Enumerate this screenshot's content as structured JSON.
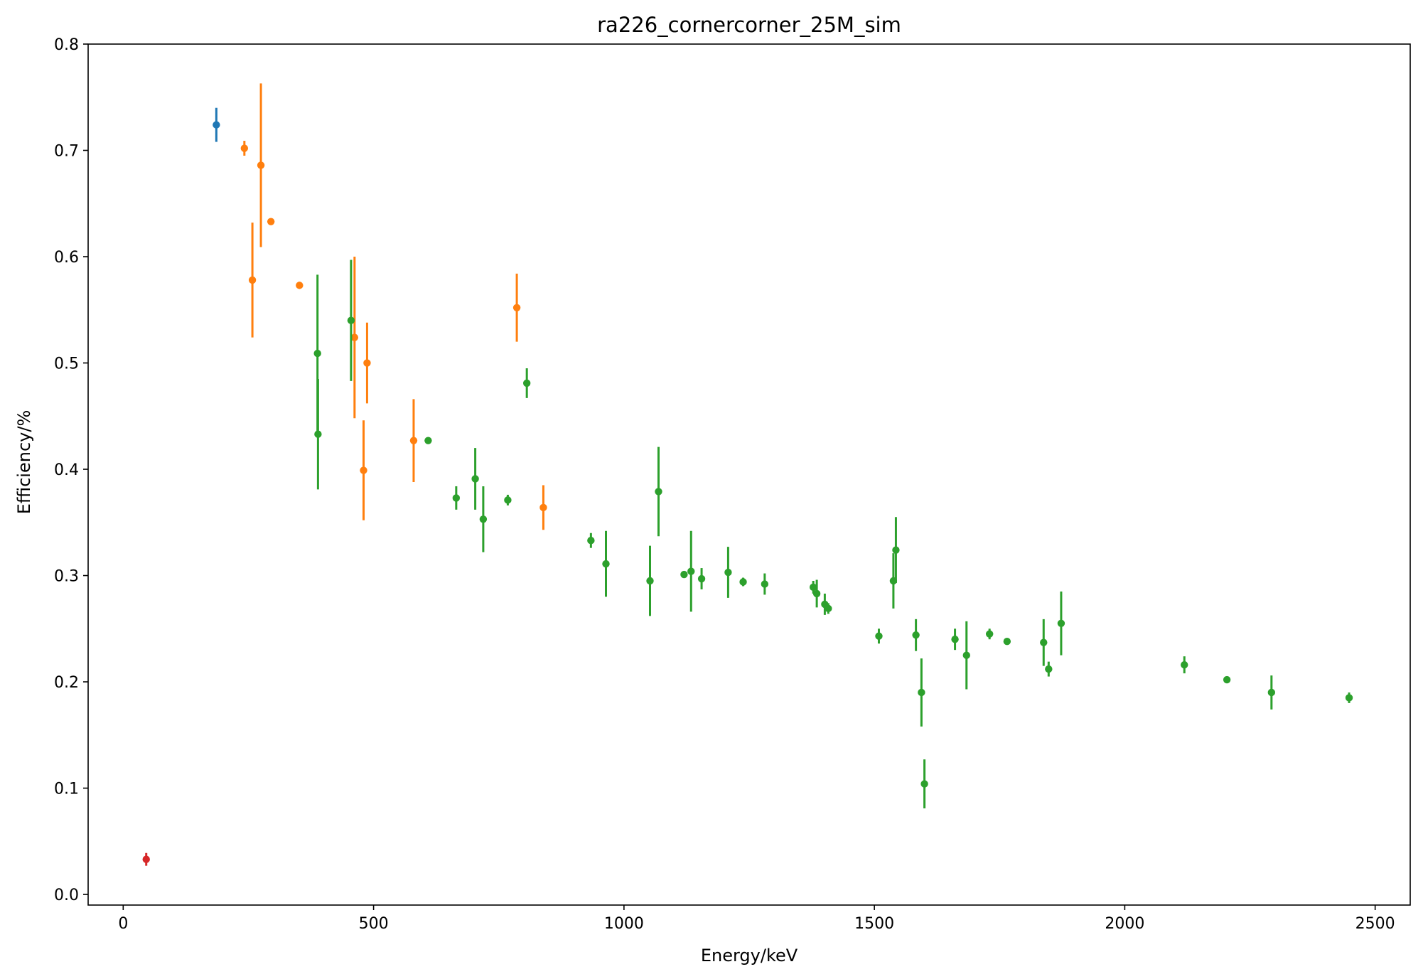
{
  "chart_data": {
    "type": "scatter",
    "title": "ra226_cornercorner_25M_sim",
    "xlabel": "Energy/keV",
    "ylabel": "Efficiency/%",
    "xlim": [
      -70,
      2570
    ],
    "ylim": [
      -0.01,
      0.8
    ],
    "xticks": [
      0,
      500,
      1000,
      1500,
      2000,
      2500
    ],
    "yticks": [
      0.0,
      0.1,
      0.2,
      0.3,
      0.4,
      0.5,
      0.6,
      0.7,
      0.8
    ],
    "xtick_labels": [
      "0",
      "500",
      "1000",
      "1500",
      "2000",
      "2500"
    ],
    "ytick_labels": [
      "0.0",
      "0.1",
      "0.2",
      "0.3",
      "0.4",
      "0.5",
      "0.6",
      "0.7",
      "0.8"
    ],
    "grid": false,
    "legend": "none",
    "series": [
      {
        "color": "#1f77b4",
        "points": [
          {
            "x": 186,
            "y": 0.724,
            "err": 0.016
          }
        ]
      },
      {
        "color": "#ff7f0e",
        "points": [
          {
            "x": 242,
            "y": 0.702,
            "err": 0.007
          },
          {
            "x": 258,
            "y": 0.578,
            "err": 0.054
          },
          {
            "x": 275,
            "y": 0.686,
            "err": 0.077
          },
          {
            "x": 295,
            "y": 0.633,
            "err": 0.003
          },
          {
            "x": 352,
            "y": 0.573,
            "err": 0.002
          },
          {
            "x": 462,
            "y": 0.524,
            "err": 0.076
          },
          {
            "x": 480,
            "y": 0.399,
            "err": 0.047
          },
          {
            "x": 487,
            "y": 0.5,
            "err": 0.038
          },
          {
            "x": 580,
            "y": 0.427,
            "err": 0.039
          },
          {
            "x": 786,
            "y": 0.552,
            "err": 0.032
          },
          {
            "x": 839,
            "y": 0.364,
            "err": 0.021
          }
        ]
      },
      {
        "color": "#2ca02c",
        "points": [
          {
            "x": 388,
            "y": 0.509,
            "err": 0.074
          },
          {
            "x": 389,
            "y": 0.433,
            "err": 0.052
          },
          {
            "x": 455,
            "y": 0.54,
            "err": 0.057
          },
          {
            "x": 609,
            "y": 0.427,
            "err": 0.002
          },
          {
            "x": 665,
            "y": 0.373,
            "err": 0.011
          },
          {
            "x": 703,
            "y": 0.391,
            "err": 0.029
          },
          {
            "x": 719,
            "y": 0.353,
            "err": 0.031
          },
          {
            "x": 768,
            "y": 0.371,
            "err": 0.005
          },
          {
            "x": 806,
            "y": 0.481,
            "err": 0.014
          },
          {
            "x": 934,
            "y": 0.333,
            "err": 0.007
          },
          {
            "x": 964,
            "y": 0.311,
            "err": 0.031
          },
          {
            "x": 1052,
            "y": 0.295,
            "err": 0.033
          },
          {
            "x": 1069,
            "y": 0.379,
            "err": 0.042
          },
          {
            "x": 1120,
            "y": 0.301,
            "err": 0.002
          },
          {
            "x": 1134,
            "y": 0.304,
            "err": 0.038
          },
          {
            "x": 1155,
            "y": 0.297,
            "err": 0.01
          },
          {
            "x": 1208,
            "y": 0.303,
            "err": 0.024
          },
          {
            "x": 1238,
            "y": 0.294,
            "err": 0.004
          },
          {
            "x": 1281,
            "y": 0.292,
            "err": 0.01
          },
          {
            "x": 1378,
            "y": 0.289,
            "err": 0.006
          },
          {
            "x": 1385,
            "y": 0.283,
            "err": 0.013
          },
          {
            "x": 1401,
            "y": 0.273,
            "err": 0.01
          },
          {
            "x": 1408,
            "y": 0.269,
            "err": 0.005
          },
          {
            "x": 1509,
            "y": 0.243,
            "err": 0.007
          },
          {
            "x": 1538,
            "y": 0.295,
            "err": 0.026
          },
          {
            "x": 1543,
            "y": 0.324,
            "err": 0.031
          },
          {
            "x": 1583,
            "y": 0.244,
            "err": 0.015
          },
          {
            "x": 1594,
            "y": 0.19,
            "err": 0.032
          },
          {
            "x": 1600,
            "y": 0.104,
            "err": 0.023
          },
          {
            "x": 1661,
            "y": 0.24,
            "err": 0.01
          },
          {
            "x": 1684,
            "y": 0.225,
            "err": 0.032
          },
          {
            "x": 1730,
            "y": 0.245,
            "err": 0.005
          },
          {
            "x": 1765,
            "y": 0.238,
            "err": 0.002
          },
          {
            "x": 1838,
            "y": 0.237,
            "err": 0.022
          },
          {
            "x": 1848,
            "y": 0.212,
            "err": 0.007
          },
          {
            "x": 1873,
            "y": 0.255,
            "err": 0.03
          },
          {
            "x": 2119,
            "y": 0.216,
            "err": 0.008
          },
          {
            "x": 2204,
            "y": 0.202,
            "err": 0.002
          },
          {
            "x": 2293,
            "y": 0.19,
            "err": 0.016
          },
          {
            "x": 2448,
            "y": 0.185,
            "err": 0.005
          }
        ]
      },
      {
        "color": "#d62728",
        "points": [
          {
            "x": 46,
            "y": 0.033,
            "err": 0.006
          }
        ]
      }
    ]
  }
}
